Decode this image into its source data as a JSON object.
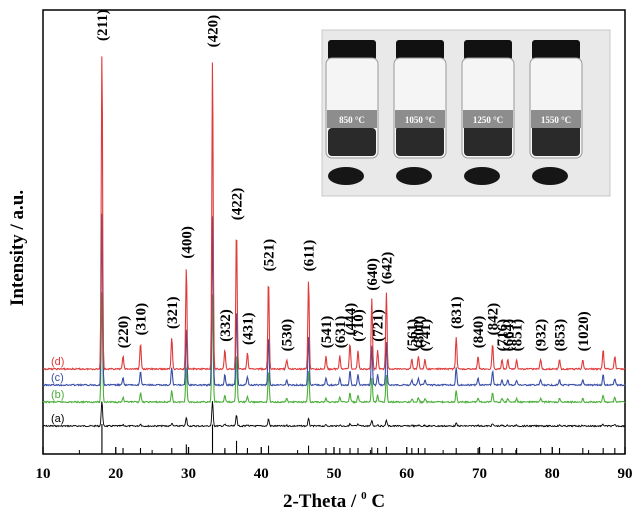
{
  "chart_data": {
    "type": "line",
    "title": "",
    "xlabel": "2-Theta / ",
    "xlabel_sup": "0",
    "xlabel_unit": " C",
    "ylabel": "Intensity / a.u.",
    "xlim": [
      10,
      90
    ],
    "x_ticks": [
      "10",
      "20",
      "30",
      "40",
      "50",
      "60",
      "70",
      "80",
      "90"
    ],
    "grid": false,
    "y_ticks_shown": false,
    "series": [
      {
        "name": "(a)",
        "color": "#000000",
        "offset": 0,
        "scale": 0.08
      },
      {
        "name": "(b)",
        "color": "#4caf3a",
        "offset": 1,
        "scale": 0.35
      },
      {
        "name": "(c)",
        "color": "#3a4fa8",
        "offset": 2,
        "scale": 0.55
      },
      {
        "name": "(d)",
        "color": "#e03a3a",
        "offset": 3,
        "scale": 1.0
      }
    ],
    "peaks": [
      {
        "x": 18.1,
        "h": 100,
        "label": "(211)"
      },
      {
        "x": 21.0,
        "h": 4,
        "label": "(220)"
      },
      {
        "x": 23.4,
        "h": 8,
        "label": "(310)"
      },
      {
        "x": 27.7,
        "h": 10,
        "label": "(321)"
      },
      {
        "x": 29.7,
        "h": 32,
        "label": "(400)"
      },
      {
        "x": 33.3,
        "h": 98,
        "label": "(420)"
      },
      {
        "x": 35.0,
        "h": 6,
        "label": "(332)"
      },
      {
        "x": 36.6,
        "h": 44,
        "label": "(422)"
      },
      {
        "x": 38.1,
        "h": 5,
        "label": "(431)"
      },
      {
        "x": 41.0,
        "h": 28,
        "label": "(521)"
      },
      {
        "x": 43.5,
        "h": 3,
        "label": "(530)"
      },
      {
        "x": 46.5,
        "h": 28,
        "label": "(611)"
      },
      {
        "x": 48.9,
        "h": 4,
        "label": "(541)"
      },
      {
        "x": 50.8,
        "h": 4,
        "label": "(631)"
      },
      {
        "x": 52.2,
        "h": 8,
        "label": "(444)"
      },
      {
        "x": 53.3,
        "h": 6,
        "label": "(710)"
      },
      {
        "x": 55.2,
        "h": 22,
        "label": "(640)"
      },
      {
        "x": 56.0,
        "h": 6,
        "label": "(721)"
      },
      {
        "x": 57.2,
        "h": 24,
        "label": "(642)"
      },
      {
        "x": 60.7,
        "h": 3,
        "label": "(561)"
      },
      {
        "x": 61.6,
        "h": 4,
        "label": "(800)"
      },
      {
        "x": 62.5,
        "h": 3,
        "label": "(741)"
      },
      {
        "x": 66.8,
        "h": 10,
        "label": "(831)"
      },
      {
        "x": 69.8,
        "h": 4,
        "label": "(840)"
      },
      {
        "x": 71.8,
        "h": 8,
        "label": "(842)"
      },
      {
        "x": 73.1,
        "h": 3,
        "label": "(716)"
      },
      {
        "x": 73.9,
        "h": 3,
        "label": "(664)"
      },
      {
        "x": 75.1,
        "h": 3,
        "label": "(851)"
      },
      {
        "x": 78.4,
        "h": 3,
        "label": "(932)"
      },
      {
        "x": 81.0,
        "h": 3,
        "label": "(853)"
      },
      {
        "x": 84.2,
        "h": 3,
        "label": "(1020)"
      },
      {
        "x": 87.0,
        "h": 6,
        "label": ""
      },
      {
        "x": 88.6,
        "h": 4,
        "label": ""
      }
    ],
    "reference_ticks": [
      18.1,
      21.0,
      23.4,
      27.7,
      29.7,
      33.3,
      35.0,
      36.6,
      38.1,
      41.0,
      46.5,
      48.9,
      50.8,
      52.2,
      53.3,
      55.2,
      56.0,
      57.2,
      60.7,
      61.6,
      62.5,
      66.8,
      69.8,
      71.8,
      73.1,
      75.1,
      78.4,
      81.0,
      84.2,
      87.0,
      88.6
    ]
  },
  "inset": {
    "vials": [
      {
        "label": "850 °C"
      },
      {
        "label": "1050 °C"
      },
      {
        "label": "1250 °C"
      },
      {
        "label": "1550 °C"
      }
    ]
  }
}
